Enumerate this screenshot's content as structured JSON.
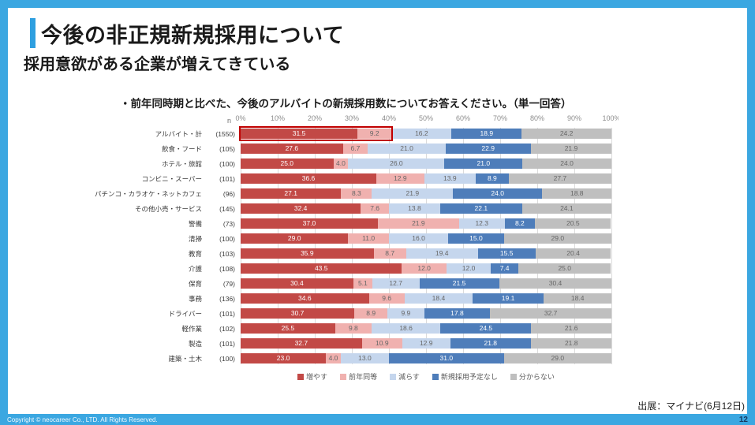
{
  "slide": {
    "title": "今後の非正規新規採用について",
    "subtitle": "採用意欲がある企業が増えてきている",
    "source": "出展：マイナビ(6月12日)",
    "copyright": "Copyright © neocareer Co., LTD. All Rights Reserved.",
    "page_number": "12",
    "frame_color": "#3BA7E1"
  },
  "chart_data": {
    "type": "bar",
    "variant": "horizontal-stacked",
    "title": "・前年同時期と比べた、今後のアルバイトの新規採用数についてお答えください。（単一回答）",
    "n_header": "n",
    "x_ticks": [
      "0%",
      "10%",
      "20%",
      "30%",
      "40%",
      "50%",
      "60%",
      "70%",
      "80%",
      "90%",
      "100%"
    ],
    "xlim": [
      0,
      100
    ],
    "grid": true,
    "legend_position": "bottom",
    "categories": [
      "アルバイト・計",
      "飲食・フード",
      "ホテル・旅館",
      "コンビニ・スーパー",
      "パチンコ・カラオケ・ネットカフェ",
      "その他小売・サービス",
      "警備",
      "清掃",
      "教育",
      "介護",
      "保育",
      "事務",
      "ドライバー",
      "軽作業",
      "製造",
      "建築・土木"
    ],
    "n_values": [
      1550,
      105,
      100,
      101,
      96,
      145,
      73,
      100,
      103,
      108,
      79,
      136,
      101,
      102,
      101,
      100
    ],
    "series": [
      {
        "name": "増やす",
        "color": "#C24946",
        "label_color": "#FFFFFF",
        "values": [
          31.5,
          27.6,
          25.0,
          36.6,
          27.1,
          32.4,
          37.0,
          29.0,
          35.9,
          43.5,
          30.4,
          34.6,
          30.7,
          25.5,
          32.7,
          23.0
        ]
      },
      {
        "name": "前年同等",
        "color": "#F0B1AF",
        "label_color": "#666666",
        "values": [
          9.2,
          6.7,
          4.0,
          12.9,
          8.3,
          7.6,
          21.9,
          11.0,
          8.7,
          12.0,
          5.1,
          9.6,
          8.9,
          9.8,
          10.9,
          4.0
        ]
      },
      {
        "name": "減らす",
        "color": "#C5D6ED",
        "label_color": "#666666",
        "values": [
          16.2,
          21.0,
          26.0,
          13.9,
          21.9,
          13.8,
          12.3,
          16.0,
          19.4,
          12.0,
          12.7,
          18.4,
          9.9,
          18.6,
          12.9,
          13.0
        ]
      },
      {
        "name": "新規採用予定なし",
        "color": "#4E7DBA",
        "label_color": "#FFFFFF",
        "values": [
          18.9,
          22.9,
          21.0,
          8.9,
          24.0,
          22.1,
          8.2,
          15.0,
          15.5,
          7.4,
          21.5,
          19.1,
          17.8,
          24.5,
          21.8,
          31.0
        ]
      },
      {
        "name": "分からない",
        "color": "#BFBFBF",
        "label_color": "#666666",
        "values": [
          24.2,
          21.9,
          24.0,
          27.7,
          18.8,
          24.1,
          20.5,
          29.0,
          20.4,
          25.0,
          30.4,
          18.4,
          32.7,
          21.6,
          21.8,
          29.0
        ]
      }
    ],
    "highlight": {
      "row_index": 0,
      "series_span": [
        0,
        2
      ],
      "border_color": "#C00000"
    }
  }
}
